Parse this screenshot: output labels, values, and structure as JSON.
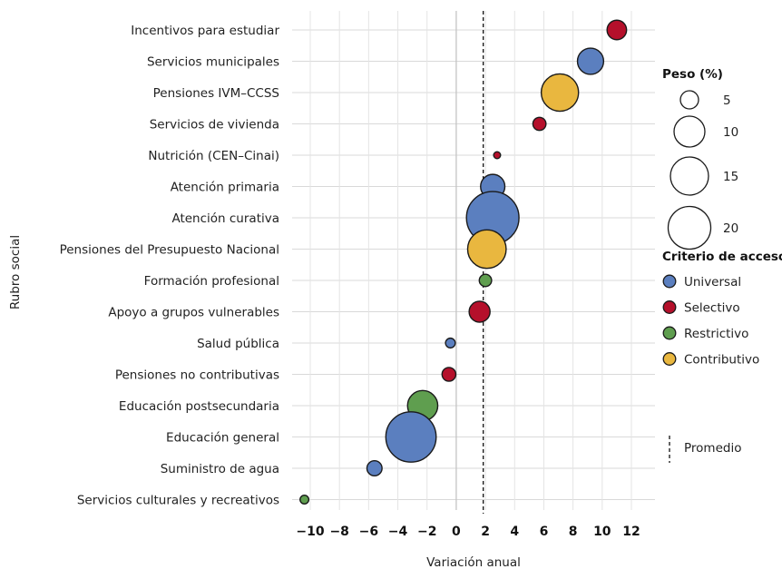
{
  "chart_data": {
    "type": "scatter",
    "xlabel": "Variación anual",
    "ylabel": "Rubro social",
    "xlim": [
      -11.5,
      13.2
    ],
    "x_ticks": [
      -10,
      -8,
      -6,
      -4,
      -2,
      0,
      2,
      4,
      6,
      8,
      10,
      12
    ],
    "x_tick_labels": [
      "−10",
      "−8",
      "−6",
      "−4",
      "−2",
      "0",
      "2",
      "4",
      "6",
      "8",
      "10",
      "12"
    ],
    "average_line": {
      "value": 1.85,
      "label": "Promedio"
    },
    "grid": true,
    "legend_position": "right",
    "size_legend": {
      "title": "Peso (%)",
      "entries": [
        {
          "value": 5,
          "label": "5"
        },
        {
          "value": 10,
          "label": "10"
        },
        {
          "value": 15,
          "label": "15"
        },
        {
          "value": 20,
          "label": "20"
        }
      ]
    },
    "color_legend": {
      "title": "Criterio de acceso",
      "entries": [
        {
          "key": "universal",
          "label": "Universal",
          "color": "#5b7fbf"
        },
        {
          "key": "selectivo",
          "label": "Selectivo",
          "color": "#b5102b"
        },
        {
          "key": "restrictivo",
          "label": "Restrictivo",
          "color": "#5f9e4f"
        },
        {
          "key": "contributivo",
          "label": "Contributivo",
          "color": "#e9b73f"
        }
      ]
    },
    "points": [
      {
        "category": "Incentivos para estudiar",
        "x": 11.0,
        "weight": 2.0,
        "criterio": "selectivo"
      },
      {
        "category": "Servicios municipales",
        "x": 9.2,
        "weight": 3.6,
        "criterio": "universal"
      },
      {
        "category": "Pensiones IVM–CCSS",
        "x": 7.1,
        "weight": 7.3,
        "criterio": "contributivo"
      },
      {
        "category": "Servicios de vivienda",
        "x": 5.7,
        "weight": 0.9,
        "criterio": "selectivo"
      },
      {
        "category": "Nutrición (CEN–Cinai)",
        "x": 2.8,
        "weight": 0.25,
        "criterio": "selectivo"
      },
      {
        "category": "Atención primaria",
        "x": 2.5,
        "weight": 3.1,
        "criterio": "universal"
      },
      {
        "category": "Atención curativa",
        "x": 2.5,
        "weight": 14.5,
        "criterio": "universal"
      },
      {
        "category": "Pensiones del Presupuesto Nacional",
        "x": 2.1,
        "weight": 7.8,
        "criterio": "contributivo"
      },
      {
        "category": "Formación profesional",
        "x": 2.0,
        "weight": 0.8,
        "criterio": "restrictivo"
      },
      {
        "category": "Apoyo a grupos vulnerables",
        "x": 1.6,
        "weight": 2.3,
        "criterio": "selectivo"
      },
      {
        "category": "Salud pública",
        "x": -0.4,
        "weight": 0.5,
        "criterio": "universal"
      },
      {
        "category": "Pensiones no contributivas",
        "x": -0.5,
        "weight": 1.0,
        "criterio": "selectivo"
      },
      {
        "category": "Educación postsecundaria",
        "x": -2.3,
        "weight": 4.8,
        "criterio": "restrictivo"
      },
      {
        "category": "Educación general",
        "x": -3.1,
        "weight": 13.3,
        "criterio": "universal"
      },
      {
        "category": "Suministro de agua",
        "x": -5.6,
        "weight": 1.2,
        "criterio": "universal"
      },
      {
        "category": "Servicios culturales y recreativos",
        "x": -10.4,
        "weight": 0.4,
        "criterio": "restrictivo"
      }
    ]
  }
}
